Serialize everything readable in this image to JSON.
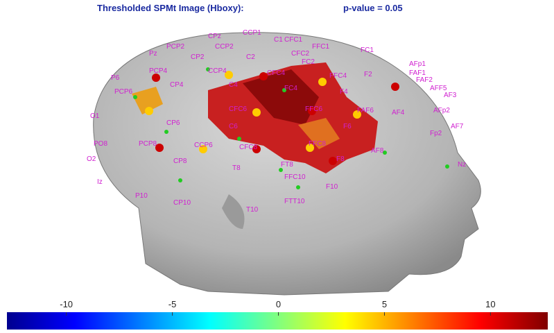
{
  "title": "Thresholded SPMt Image (Hboxy):",
  "pvalue": "p-value = 0.05",
  "electrodes": [
    "CPz",
    "CCP1",
    "C1",
    "CFC1",
    "PCP2",
    "CCP2",
    "FFC1",
    "FC1",
    "Pz",
    "CP2",
    "C2",
    "CFC2",
    "FC2",
    "AFp1",
    "PCP4",
    "CCP4",
    "CFC4",
    "FFC4",
    "F2",
    "FAF1",
    "FAF2",
    "AFF5",
    "AF3",
    "P6",
    "CP4",
    "C4",
    "FC4",
    "F4",
    "FAF6",
    "AF4",
    "AFp2",
    "AF7",
    "Fp2",
    "PCP6",
    "CFC6",
    "FFC6",
    "F6",
    "CP6",
    "CCP6",
    "CFC8",
    "FFC8",
    "F8",
    "AF8",
    "Nz",
    "PCP8",
    "CP8",
    "C6",
    "T8",
    "FT8",
    "FFC10",
    "F10",
    "CP10",
    "FTT10",
    "O1",
    "O2",
    "PO8",
    "Iz",
    "P10",
    "T10"
  ],
  "colorbar": {
    "range": [
      -12.8,
      12.7
    ],
    "ticks": [
      -10,
      -5,
      0,
      5,
      10
    ]
  }
}
